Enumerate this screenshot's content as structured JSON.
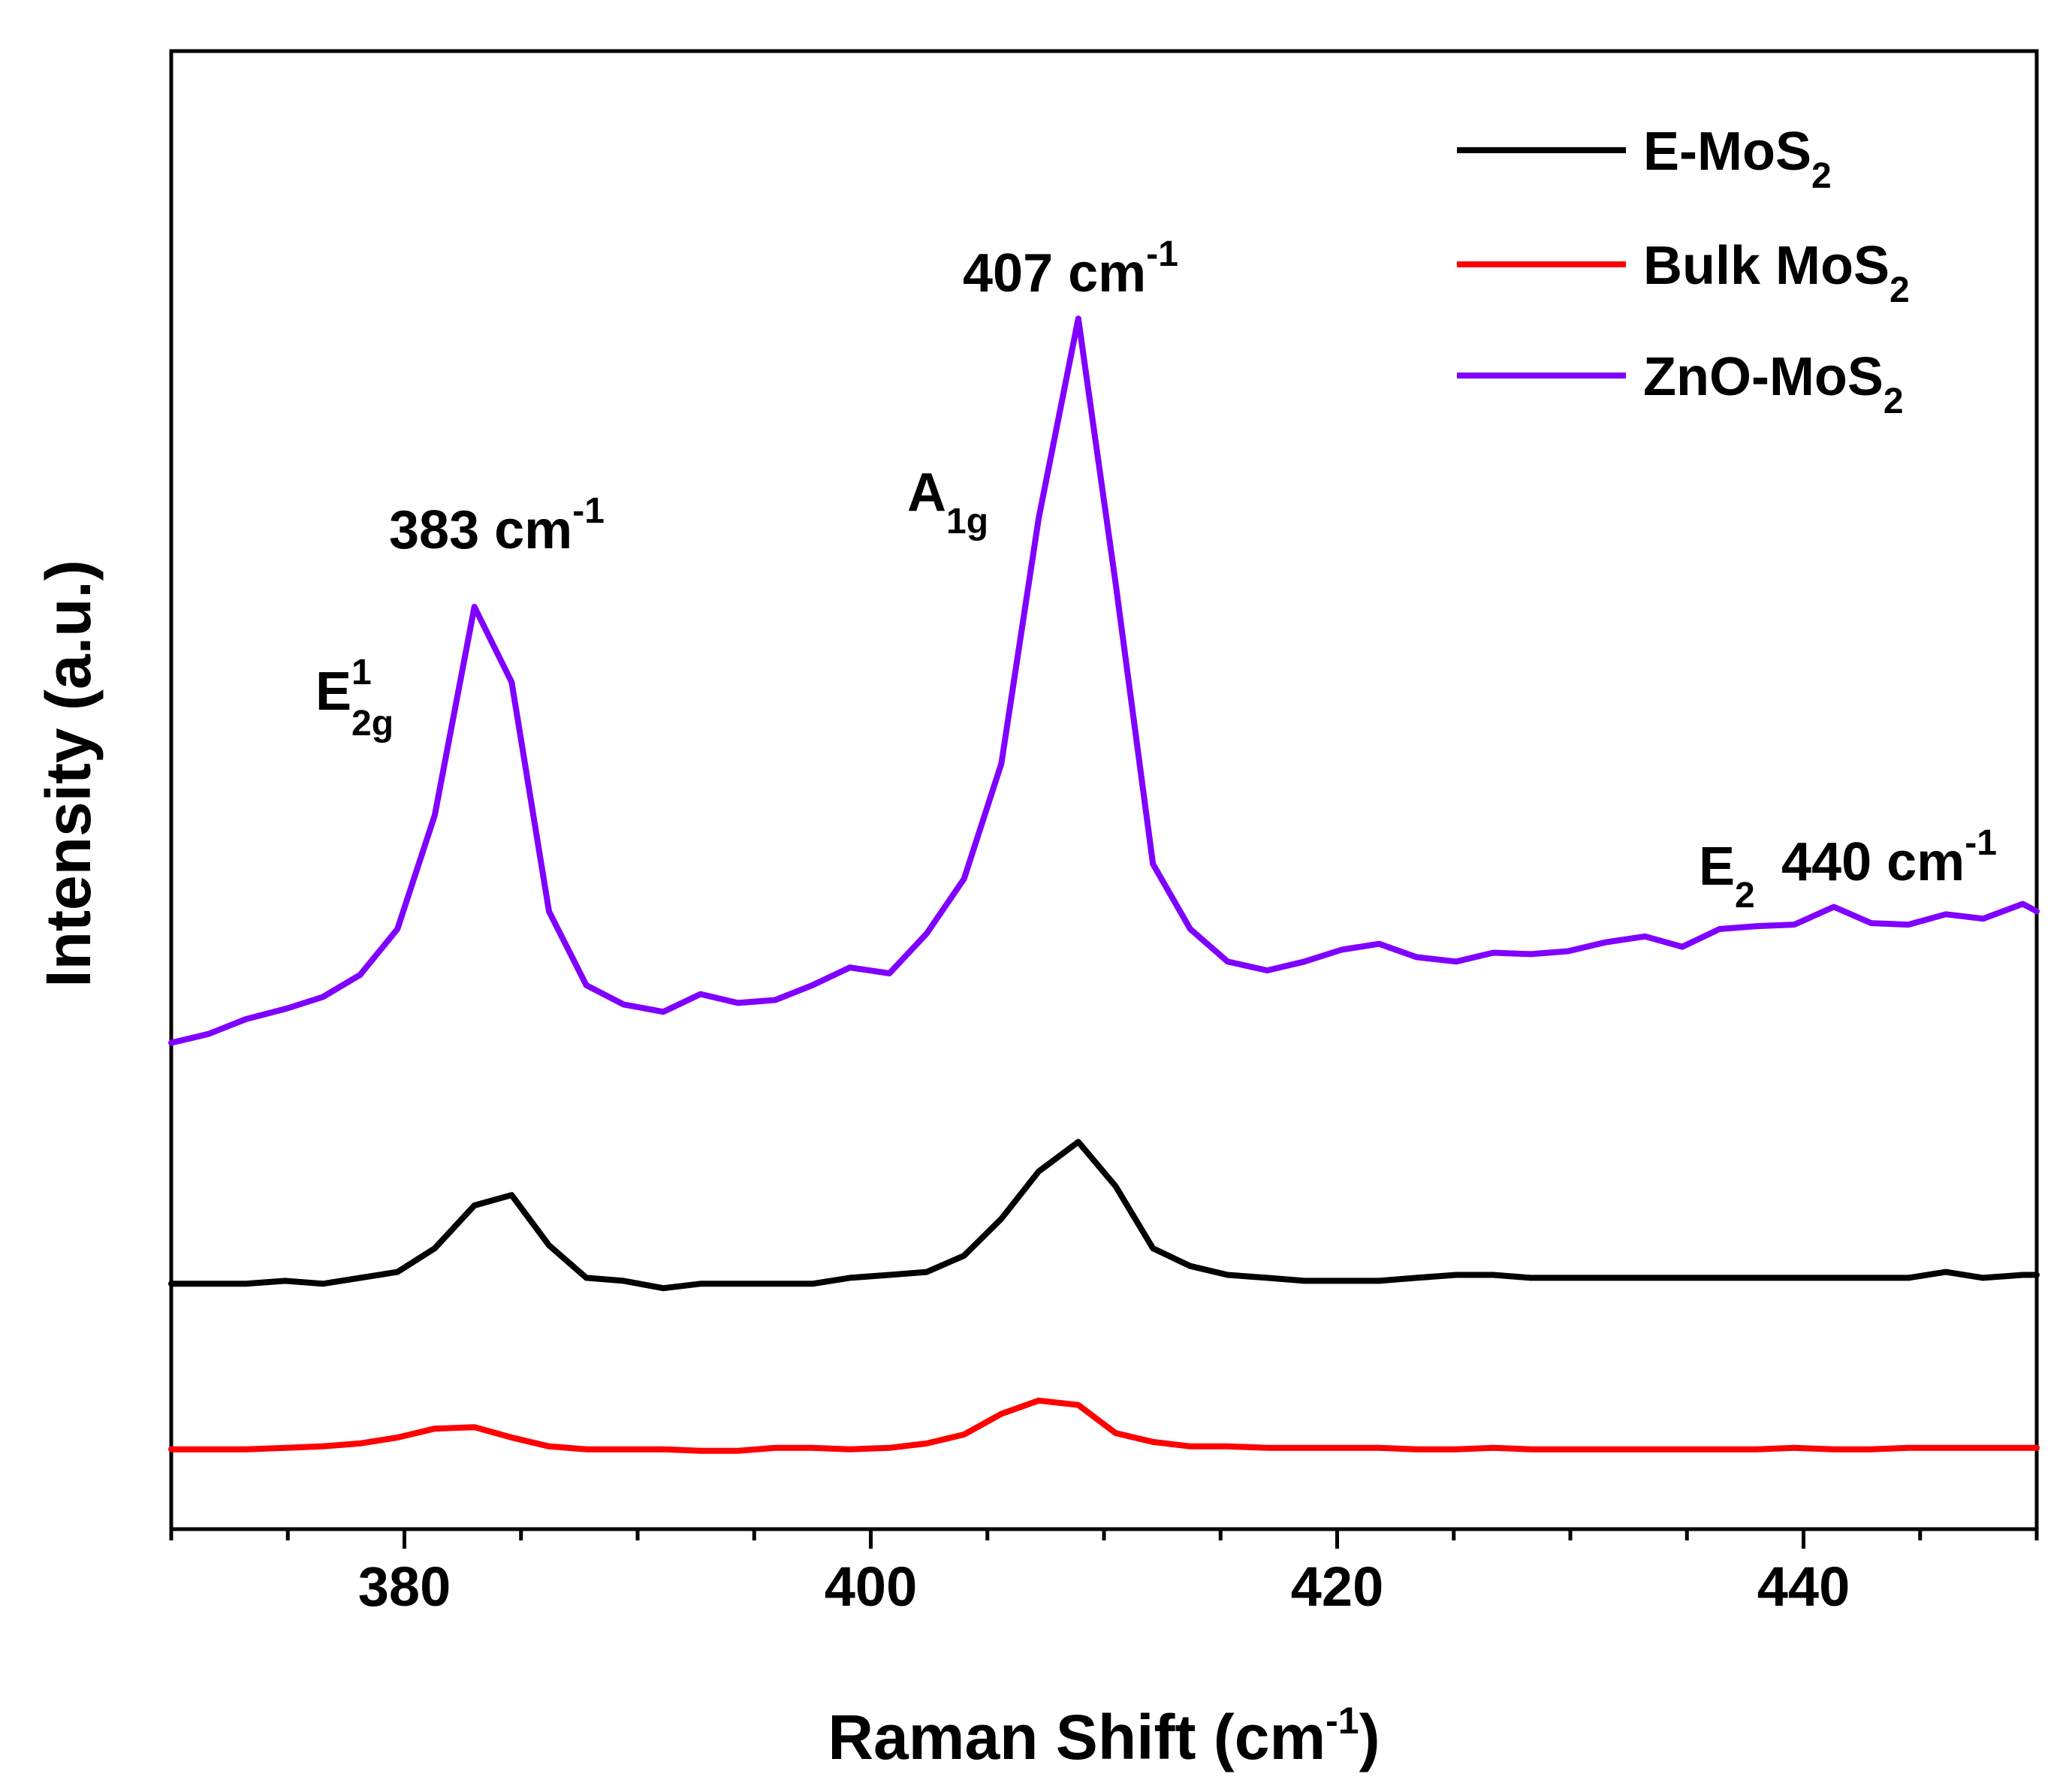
{
  "chart_data": {
    "type": "line",
    "xlabel": "Raman Shift (cm",
    "xlabel_sup": "-1",
    "xlabel_close": ")",
    "ylabel": "Intensity (a.u.)",
    "xlim": [
      370,
      450
    ],
    "ylim": [
      0,
      100
    ],
    "x_ticks": [
      "380",
      "400",
      "420",
      "440"
    ],
    "y_ticks_visible": false,
    "legend_position": "top-right",
    "series": [
      {
        "name": "E-MoS",
        "name_sub": "2",
        "color": "#000000",
        "points": [
          [
            370,
            16.6
          ],
          [
            371.6,
            16.6
          ],
          [
            373.2,
            16.6
          ],
          [
            374.9,
            16.8
          ],
          [
            376.5,
            16.6
          ],
          [
            378.1,
            17.0
          ],
          [
            379.7,
            17.4
          ],
          [
            381.3,
            19.0
          ],
          [
            383.0,
            21.9
          ],
          [
            384.6,
            22.6
          ],
          [
            386.2,
            19.2
          ],
          [
            387.8,
            17.0
          ],
          [
            389.4,
            16.8
          ],
          [
            391.1,
            16.3
          ],
          [
            392.7,
            16.6
          ],
          [
            394.3,
            16.6
          ],
          [
            395.9,
            16.6
          ],
          [
            397.5,
            16.6
          ],
          [
            399.1,
            17.0
          ],
          [
            400.8,
            17.2
          ],
          [
            402.4,
            17.4
          ],
          [
            404.0,
            18.5
          ],
          [
            405.6,
            21.0
          ],
          [
            407.2,
            24.2
          ],
          [
            408.9,
            26.2
          ],
          [
            410.5,
            23.2
          ],
          [
            412.1,
            19.0
          ],
          [
            413.7,
            17.8
          ],
          [
            415.3,
            17.2
          ],
          [
            417.0,
            17.0
          ],
          [
            418.6,
            16.8
          ],
          [
            420.2,
            16.8
          ],
          [
            421.8,
            16.8
          ],
          [
            423.4,
            17.0
          ],
          [
            425.1,
            17.2
          ],
          [
            426.7,
            17.2
          ],
          [
            428.3,
            17.0
          ],
          [
            429.9,
            17.0
          ],
          [
            431.5,
            17.0
          ],
          [
            433.2,
            17.0
          ],
          [
            434.8,
            17.0
          ],
          [
            436.4,
            17.0
          ],
          [
            438.0,
            17.0
          ],
          [
            439.6,
            17.0
          ],
          [
            441.3,
            17.0
          ],
          [
            442.9,
            17.0
          ],
          [
            444.5,
            17.0
          ],
          [
            446.1,
            17.4
          ],
          [
            447.7,
            17.0
          ],
          [
            449.4,
            17.2
          ],
          [
            450,
            17.2
          ]
        ]
      },
      {
        "name": "Bulk MoS",
        "name_sub": "2",
        "color": "#ff0000",
        "points": [
          [
            370,
            5.4
          ],
          [
            371.6,
            5.4
          ],
          [
            373.2,
            5.4
          ],
          [
            374.9,
            5.5
          ],
          [
            376.5,
            5.6
          ],
          [
            378.1,
            5.8
          ],
          [
            379.7,
            6.2
          ],
          [
            381.3,
            6.8
          ],
          [
            383.0,
            6.9
          ],
          [
            384.6,
            6.2
          ],
          [
            386.2,
            5.6
          ],
          [
            387.8,
            5.4
          ],
          [
            389.4,
            5.4
          ],
          [
            391.1,
            5.4
          ],
          [
            392.7,
            5.3
          ],
          [
            394.3,
            5.3
          ],
          [
            395.9,
            5.5
          ],
          [
            397.5,
            5.5
          ],
          [
            399.1,
            5.4
          ],
          [
            400.8,
            5.5
          ],
          [
            402.4,
            5.8
          ],
          [
            404.0,
            6.4
          ],
          [
            405.6,
            7.8
          ],
          [
            407.2,
            8.7
          ],
          [
            408.9,
            8.4
          ],
          [
            410.5,
            6.5
          ],
          [
            412.1,
            5.9
          ],
          [
            413.7,
            5.6
          ],
          [
            415.3,
            5.6
          ],
          [
            417.0,
            5.5
          ],
          [
            418.6,
            5.5
          ],
          [
            420.2,
            5.5
          ],
          [
            421.8,
            5.5
          ],
          [
            423.4,
            5.4
          ],
          [
            425.1,
            5.4
          ],
          [
            426.7,
            5.5
          ],
          [
            428.3,
            5.4
          ],
          [
            429.9,
            5.4
          ],
          [
            431.5,
            5.4
          ],
          [
            433.2,
            5.4
          ],
          [
            434.8,
            5.4
          ],
          [
            436.4,
            5.4
          ],
          [
            438.0,
            5.4
          ],
          [
            439.6,
            5.5
          ],
          [
            441.3,
            5.4
          ],
          [
            442.9,
            5.4
          ],
          [
            444.5,
            5.5
          ],
          [
            446.1,
            5.5
          ],
          [
            447.7,
            5.5
          ],
          [
            449.4,
            5.5
          ],
          [
            450,
            5.5
          ]
        ]
      },
      {
        "name": "ZnO-MoS",
        "name_sub": "2",
        "color": "#7f00ff",
        "points": [
          [
            370,
            32.9
          ],
          [
            371.6,
            33.5
          ],
          [
            373.2,
            34.5
          ],
          [
            374.9,
            35.2
          ],
          [
            376.5,
            36.0
          ],
          [
            378.1,
            37.5
          ],
          [
            379.7,
            40.6
          ],
          [
            381.3,
            48.3
          ],
          [
            383.0,
            62.4
          ],
          [
            384.6,
            57.3
          ],
          [
            386.2,
            41.8
          ],
          [
            387.8,
            36.8
          ],
          [
            389.4,
            35.5
          ],
          [
            391.1,
            35.0
          ],
          [
            392.7,
            36.2
          ],
          [
            394.3,
            35.6
          ],
          [
            395.9,
            35.8
          ],
          [
            397.5,
            36.8
          ],
          [
            399.1,
            38.0
          ],
          [
            400.8,
            37.6
          ],
          [
            402.4,
            40.3
          ],
          [
            404.0,
            44.0
          ],
          [
            405.6,
            51.8
          ],
          [
            407.2,
            68.4
          ],
          [
            408.9,
            81.9
          ],
          [
            410.5,
            64.0
          ],
          [
            412.1,
            45.0
          ],
          [
            413.7,
            40.6
          ],
          [
            415.3,
            38.4
          ],
          [
            417.0,
            37.8
          ],
          [
            418.6,
            38.4
          ],
          [
            420.2,
            39.2
          ],
          [
            421.8,
            39.6
          ],
          [
            423.4,
            38.7
          ],
          [
            425.1,
            38.4
          ],
          [
            426.7,
            39.0
          ],
          [
            428.3,
            38.9
          ],
          [
            429.9,
            39.1
          ],
          [
            431.5,
            39.7
          ],
          [
            433.2,
            40.1
          ],
          [
            434.8,
            39.4
          ],
          [
            436.4,
            40.6
          ],
          [
            438.0,
            40.8
          ],
          [
            439.6,
            40.9
          ],
          [
            441.3,
            42.1
          ],
          [
            442.9,
            41.0
          ],
          [
            444.5,
            40.9
          ],
          [
            446.1,
            41.6
          ],
          [
            447.7,
            41.3
          ],
          [
            449.4,
            42.3
          ],
          [
            450,
            41.8
          ]
        ]
      }
    ],
    "annotations": [
      {
        "id": "e2g",
        "base": "E",
        "sup": "1",
        "sub": "2g"
      },
      {
        "id": "p383",
        "base": "383 cm",
        "sup": "-1",
        "sub": ""
      },
      {
        "id": "a1g",
        "base": "A",
        "sup": "",
        "sub": "1g"
      },
      {
        "id": "p407",
        "base": "407 cm",
        "sup": "-1",
        "sub": ""
      },
      {
        "id": "e2",
        "base": "E",
        "sup": "",
        "sub": "2"
      },
      {
        "id": "p440",
        "base": "440 cm",
        "sup": "-1",
        "sub": ""
      }
    ]
  }
}
